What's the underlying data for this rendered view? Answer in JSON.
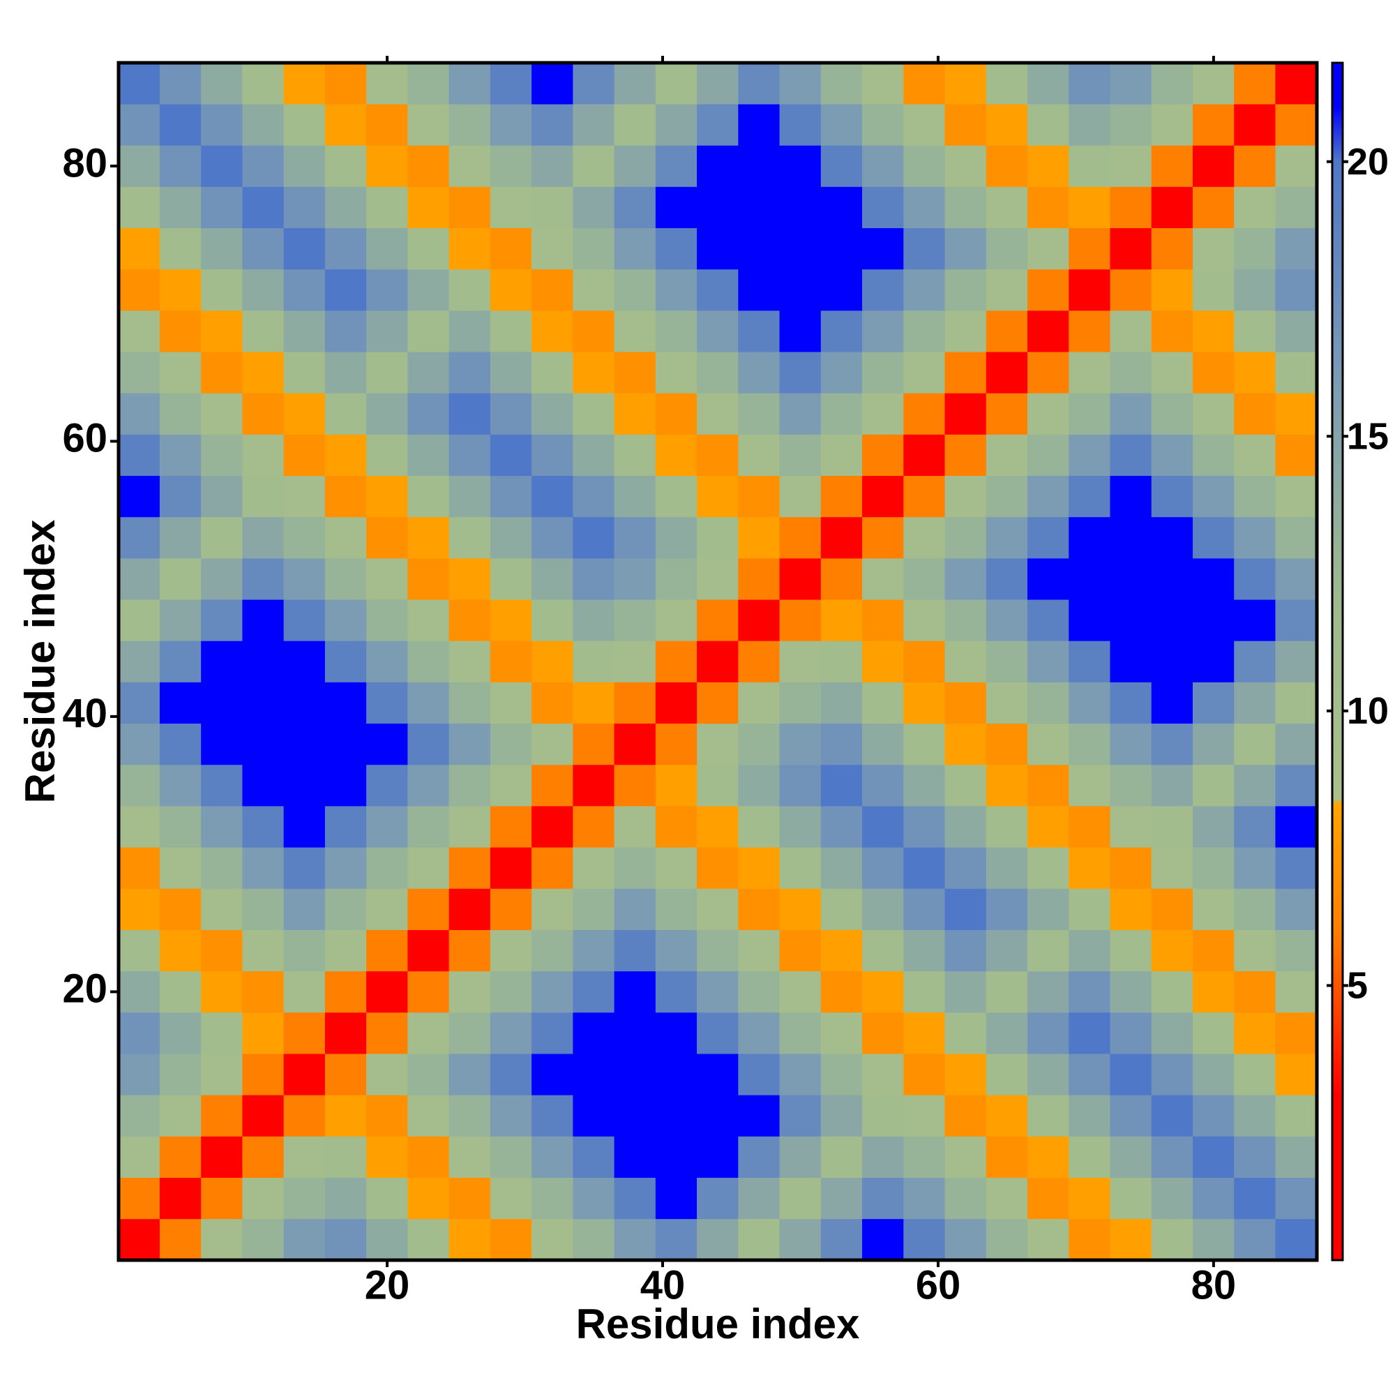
{
  "chart_data": {
    "type": "heatmap",
    "xlabel": "Residue index",
    "ylabel": "Residue index",
    "xbins": [
      0.5,
      3.5,
      6.5,
      9.5,
      12.5,
      15.5,
      18.5,
      21.5,
      24.5,
      27.5,
      30.5,
      33.5,
      36.5,
      39.5,
      42.5,
      45.5,
      48.5,
      51.5,
      54.5,
      57.5,
      60.5,
      63.5,
      66.5,
      69.5,
      72.5,
      75.5,
      78.5,
      81.5,
      84.5,
      87.5
    ],
    "ybins": [
      0.5,
      3.5,
      6.5,
      9.5,
      12.5,
      15.5,
      18.5,
      21.5,
      24.5,
      27.5,
      30.5,
      33.5,
      36.5,
      39.5,
      42.5,
      45.5,
      48.5,
      51.5,
      54.5,
      57.5,
      60.5,
      63.5,
      66.5,
      69.5,
      72.5,
      75.5,
      78.5,
      81.5,
      84.5,
      87.5
    ],
    "xlim": [
      0.5,
      87.5
    ],
    "ylim": [
      0.5,
      87.5
    ],
    "xticks": [
      20,
      40,
      60,
      80
    ],
    "yticks": [
      20,
      40,
      60,
      80
    ],
    "colorbar": {
      "lim": [
        0,
        21.8
      ],
      "ticks": [
        5,
        10,
        15,
        20
      ]
    },
    "colorscale": [
      [
        0,
        "#ff0000"
      ],
      [
        3,
        "#ff0000"
      ],
      [
        6,
        "#ff7f00"
      ],
      [
        8.3,
        "#ffa500"
      ],
      [
        8.4,
        "#a9c08a"
      ],
      [
        12,
        "#a0ba8e"
      ],
      [
        16,
        "#7c9cb4"
      ],
      [
        20,
        "#5078c8"
      ],
      [
        21,
        "#0000ff"
      ],
      [
        21.8,
        "#0000ff"
      ]
    ],
    "z": [
      [
        2.5,
        6,
        10,
        13,
        16,
        17,
        14,
        11,
        8,
        7,
        10,
        13,
        16,
        18,
        14.5,
        11,
        14.5,
        18,
        21.5,
        19,
        16,
        13,
        10,
        7,
        8,
        11,
        14,
        17,
        20
      ],
      [
        6,
        2.5,
        6,
        10,
        13,
        14,
        11,
        8,
        7,
        10,
        13,
        16,
        19,
        21.5,
        18,
        14.5,
        11,
        14.5,
        18,
        16,
        13,
        10,
        7,
        8,
        11,
        14,
        17,
        20,
        17
      ],
      [
        10,
        6,
        2.5,
        6,
        10,
        11,
        8,
        7,
        10,
        13,
        16,
        19,
        21.5,
        21.5,
        21.5,
        18,
        14.5,
        11,
        14.5,
        13,
        10,
        7,
        8,
        11,
        14,
        17,
        20,
        17,
        14
      ],
      [
        13,
        10,
        6,
        2.5,
        6,
        8,
        7,
        10,
        13,
        16,
        19,
        21.5,
        21.5,
        21.5,
        21.5,
        21.5,
        18,
        14.5,
        11,
        10,
        7,
        8,
        11,
        14,
        17,
        20,
        17,
        14,
        11
      ],
      [
        16,
        13,
        10,
        6,
        2.5,
        6,
        10,
        13,
        16,
        19,
        21.5,
        21.5,
        21.5,
        21.5,
        21.5,
        19,
        16,
        13,
        10,
        7,
        8,
        11,
        14,
        17,
        20,
        17,
        14,
        11,
        8
      ],
      [
        17,
        14,
        11,
        8,
        6,
        2.5,
        6,
        10,
        13,
        16,
        19,
        21.5,
        21.5,
        21.5,
        19,
        16,
        13,
        10,
        7,
        8,
        11,
        14,
        17,
        20,
        17,
        14,
        11,
        8,
        7
      ],
      [
        14,
        11,
        8,
        7,
        10,
        6,
        2.5,
        6,
        10,
        13,
        16,
        19,
        21.5,
        19,
        16,
        13,
        10,
        7,
        8,
        11,
        14,
        11,
        14.5,
        17,
        14,
        11,
        8,
        7,
        10
      ],
      [
        11,
        8,
        7,
        10,
        13,
        10,
        6,
        2.5,
        6,
        10,
        13,
        16,
        19,
        16,
        13,
        10,
        7,
        8,
        11,
        14,
        17,
        14.5,
        11,
        14,
        11,
        8,
        7,
        10,
        13
      ],
      [
        8,
        7,
        10,
        13,
        16,
        13,
        10,
        6,
        2.5,
        6,
        10,
        13,
        16,
        13,
        10,
        7,
        8,
        11,
        14,
        17,
        20,
        17,
        14,
        11,
        8,
        7,
        10,
        13,
        16
      ],
      [
        7,
        10,
        13,
        16,
        19,
        16,
        13,
        10,
        6,
        2.5,
        6,
        10,
        13,
        10,
        7,
        8,
        11,
        14,
        17,
        20,
        17,
        14,
        11,
        8,
        7,
        10,
        13,
        16,
        19
      ],
      [
        10,
        13,
        16,
        19,
        21.5,
        19,
        16,
        13,
        10,
        6,
        2.5,
        6,
        10,
        7,
        8,
        11,
        14,
        17,
        20,
        17,
        14,
        11,
        8,
        7,
        10,
        11,
        14.5,
        18,
        21.5
      ],
      [
        13,
        16,
        19,
        21.5,
        21.5,
        21.5,
        19,
        16,
        13,
        10,
        6,
        2.5,
        6,
        8,
        11,
        14,
        17,
        20,
        17,
        14,
        11,
        8,
        7,
        10,
        13,
        14.5,
        11,
        14.5,
        18
      ],
      [
        16,
        19,
        21.5,
        21.5,
        21.5,
        21.5,
        21.5,
        19,
        16,
        13,
        10,
        6,
        2.5,
        6,
        10,
        13,
        16,
        17,
        14,
        11,
        8,
        7,
        10,
        13,
        16,
        18,
        14.5,
        11,
        14.5
      ],
      [
        18,
        21.5,
        21.5,
        21.5,
        21.5,
        21.5,
        19,
        16,
        13,
        10,
        7,
        8,
        6,
        2.5,
        6,
        10,
        13,
        14,
        11,
        8,
        7,
        10,
        13,
        16,
        19,
        21.5,
        18,
        14.5,
        11
      ],
      [
        14.5,
        18,
        21.5,
        21.5,
        21.5,
        19,
        16,
        13,
        10,
        7,
        8,
        11,
        10,
        6,
        2.5,
        6,
        10,
        11,
        8,
        7,
        10,
        13,
        16,
        19,
        21.5,
        21.5,
        21.5,
        18,
        14.5
      ],
      [
        11,
        14.5,
        18,
        21.5,
        19,
        16,
        13,
        10,
        7,
        8,
        11,
        14,
        13,
        10,
        6,
        2.5,
        6,
        8,
        7,
        10,
        13,
        16,
        19,
        21.5,
        21.5,
        21.5,
        21.5,
        21.5,
        18
      ],
      [
        14.5,
        11,
        14.5,
        18,
        16,
        13,
        10,
        7,
        8,
        11,
        14,
        17,
        16,
        13,
        10,
        6,
        2.5,
        6,
        10,
        13,
        16,
        19,
        21.5,
        21.5,
        21.5,
        21.5,
        21.5,
        19,
        16
      ],
      [
        18,
        14.5,
        11,
        14.5,
        13,
        10,
        7,
        8,
        11,
        14,
        17,
        20,
        17,
        14,
        11,
        8,
        6,
        2.5,
        6,
        10,
        13,
        16,
        19,
        21.5,
        21.5,
        21.5,
        19,
        16,
        13
      ],
      [
        21.5,
        18,
        14.5,
        11,
        10,
        7,
        8,
        11,
        14,
        17,
        20,
        17,
        14,
        11,
        8,
        7,
        10,
        6,
        2.5,
        6,
        10,
        13,
        16,
        19,
        21.5,
        19,
        16,
        13,
        10
      ],
      [
        19,
        16,
        13,
        10,
        7,
        8,
        11,
        14,
        17,
        20,
        17,
        14,
        11,
        8,
        7,
        10,
        13,
        10,
        6,
        2.5,
        6,
        10,
        13,
        16,
        19,
        16,
        13,
        10,
        7
      ],
      [
        16,
        13,
        10,
        7,
        8,
        11,
        14,
        17,
        20,
        17,
        14,
        11,
        8,
        7,
        10,
        13,
        16,
        13,
        10,
        6,
        2.5,
        6,
        10,
        13,
        16,
        13,
        10,
        7,
        8
      ],
      [
        13,
        10,
        7,
        8,
        11,
        14,
        11,
        14.5,
        17,
        14,
        11,
        8,
        7,
        10,
        13,
        16,
        19,
        16,
        13,
        10,
        6,
        2.5,
        6,
        10,
        13,
        10,
        7,
        8,
        11
      ],
      [
        10,
        7,
        8,
        11,
        14,
        17,
        14.5,
        11,
        14,
        11,
        8,
        7,
        10,
        13,
        16,
        19,
        21.5,
        19,
        16,
        13,
        10,
        6,
        2.5,
        6,
        10,
        7,
        8,
        11,
        14
      ],
      [
        7,
        8,
        11,
        14,
        17,
        20,
        17,
        14,
        11,
        8,
        7,
        10,
        13,
        16,
        19,
        21.5,
        21.5,
        21.5,
        19,
        16,
        13,
        10,
        6,
        2.5,
        6,
        8,
        11,
        14,
        17
      ],
      [
        8,
        11,
        14,
        17,
        20,
        17,
        14,
        11,
        8,
        7,
        10,
        13,
        16,
        19,
        21.5,
        21.5,
        21.5,
        21.5,
        21.5,
        19,
        16,
        13,
        10,
        6,
        2.5,
        6,
        10,
        13,
        16
      ],
      [
        11,
        14,
        17,
        20,
        17,
        14,
        11,
        8,
        7,
        10,
        11,
        14.5,
        18,
        21.5,
        21.5,
        21.5,
        21.5,
        21.5,
        19,
        16,
        13,
        10,
        7,
        8,
        6,
        2.5,
        6,
        10,
        13
      ],
      [
        14,
        17,
        20,
        17,
        14,
        11,
        8,
        7,
        10,
        13,
        14.5,
        11,
        14.5,
        18,
        21.5,
        21.5,
        21.5,
        19,
        16,
        13,
        10,
        7,
        8,
        11,
        10,
        6,
        2.5,
        6,
        10
      ],
      [
        17,
        20,
        17,
        14,
        11,
        8,
        7,
        10,
        13,
        16,
        18,
        14.5,
        11,
        14.5,
        18,
        21.5,
        19,
        16,
        13,
        10,
        7,
        8,
        11,
        14,
        13,
        10,
        6,
        2.5,
        6
      ],
      [
        20,
        17,
        14,
        11,
        8,
        7,
        10,
        13,
        16,
        19,
        21.5,
        18,
        14.5,
        11,
        14.5,
        18,
        16,
        13,
        10,
        7,
        8,
        11,
        14,
        17,
        16,
        13,
        10,
        6,
        2.5
      ]
    ]
  }
}
